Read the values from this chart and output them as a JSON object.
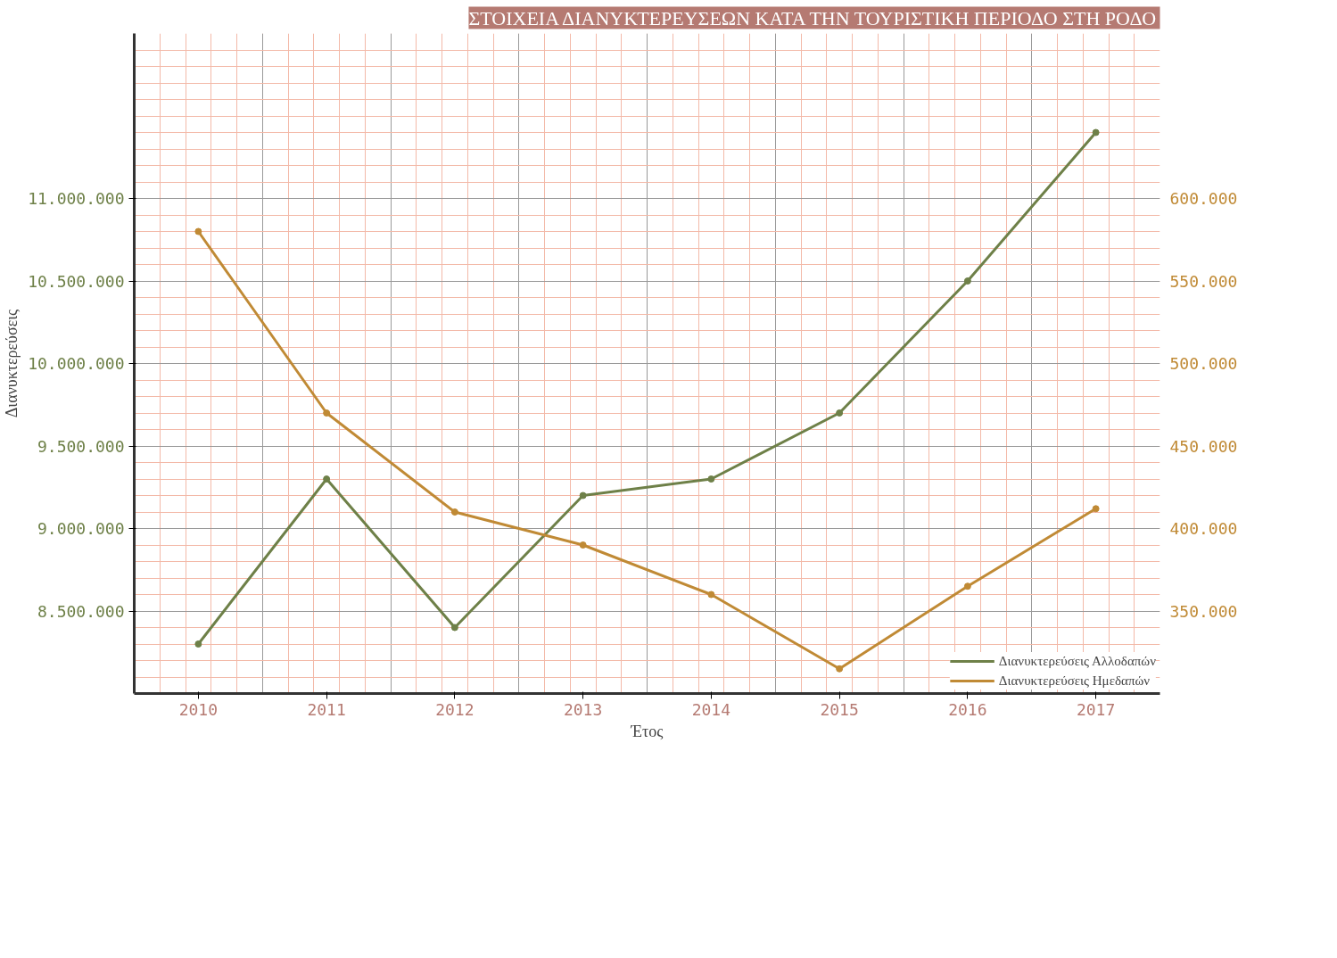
{
  "chart_data": {
    "type": "line",
    "title": "ΣΤΟΙΧΕΙΑ ΔΙΑΝΥΚΤΕΡΕΥΣΕΩΝ ΚΑΤΑ ΤΗΝ ΤΟΥΡΙΣΤΙΚΗ ΠΕΡΙΟΔΟ ΣΤΗ ΡΟΔΟ",
    "xlabel": "Έτος",
    "ylabel": "Διανυκτερεύσεις",
    "categories": [
      "2010",
      "2011",
      "2012",
      "2013",
      "2014",
      "2015",
      "2016",
      "2017"
    ],
    "series": [
      {
        "name": "Διανυκτερεύσεις Αλλοδαπών",
        "color": "#6e8048",
        "values": [
          8300000,
          9300000,
          8400000,
          9200000,
          9300000,
          9700000,
          10500000,
          11400000
        ]
      },
      {
        "name": "Διανυκτερεύσεις Ημεδαπών",
        "color": "#c08a35",
        "axis": "y2",
        "values": [
          580000,
          470000,
          410000,
          390000,
          360000,
          315000,
          365000,
          412000
        ]
      }
    ],
    "ylim": [
      8000000,
      12000000
    ],
    "yticks": [
      {
        "value": 8500000,
        "label": "8.500.000"
      },
      {
        "value": 9000000,
        "label": "9.000.000"
      },
      {
        "value": 9500000,
        "label": "9.500.000"
      },
      {
        "value": 10000000,
        "label": "10.000.000"
      },
      {
        "value": 10500000,
        "label": "10.500.000"
      },
      {
        "value": 11000000,
        "label": "11.000.000"
      }
    ],
    "y2lim": [
      300000,
      700000
    ],
    "y2ticks": [
      {
        "value": 350000,
        "label": "350.000"
      },
      {
        "value": 400000,
        "label": "400.000"
      },
      {
        "value": 450000,
        "label": "450.000"
      },
      {
        "value": 500000,
        "label": "500.000"
      },
      {
        "value": 550000,
        "label": "550.000"
      },
      {
        "value": 600000,
        "label": "600.000"
      }
    ],
    "grid": true,
    "legend": "bottom right",
    "marker": "circle",
    "line_style": "solid"
  }
}
